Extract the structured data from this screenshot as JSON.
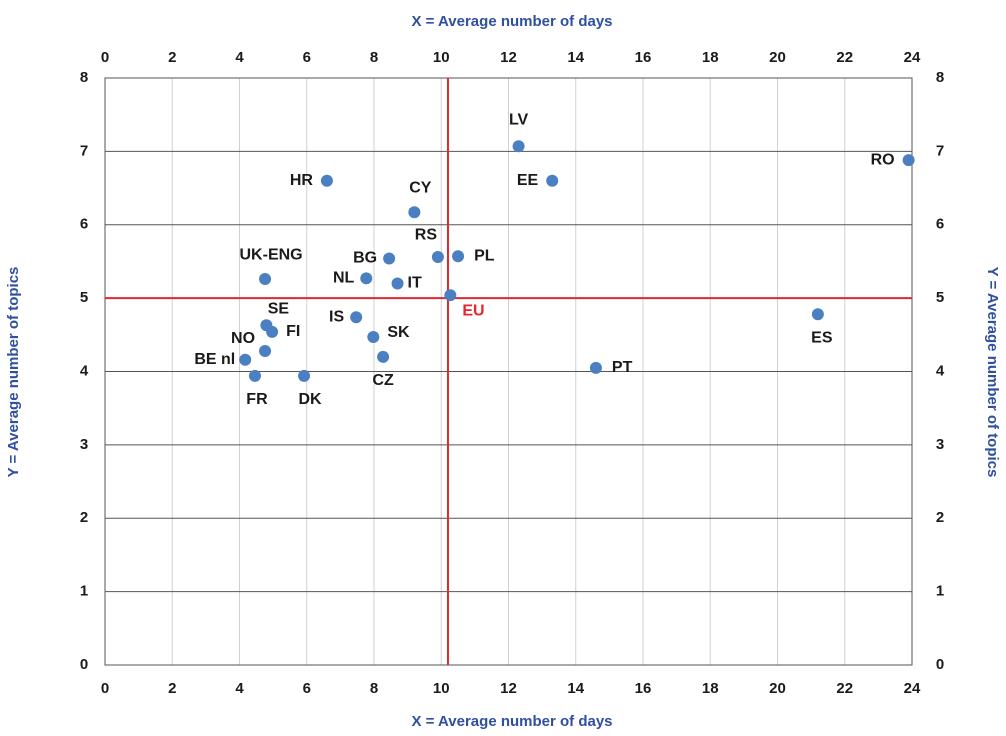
{
  "chart_data": {
    "type": "scatter",
    "x_label": "X = Average number of days",
    "y_label": "Y = Average number of topics",
    "labels": [
      "LV",
      "EE",
      "RO",
      "HR",
      "CY",
      "RS",
      "PL",
      "BG",
      "UK-ENG",
      "NL",
      "IT",
      "EU",
      "IS",
      "SK",
      "CZ",
      "SE",
      "FI",
      "NO",
      "BE nl",
      "FR",
      "DK",
      "PT",
      "ES"
    ],
    "x": [
      12.3,
      13.3,
      23.9,
      6.6,
      9.2,
      9.9,
      10.5,
      8.45,
      4.76,
      7.77,
      8.7,
      10.27,
      7.47,
      7.98,
      8.27,
      4.8,
      4.97,
      4.76,
      4.17,
      4.46,
      5.92,
      14.6,
      21.2
    ],
    "values": [
      7.07,
      6.6,
      6.88,
      6.6,
      6.17,
      5.56,
      5.57,
      5.54,
      5.26,
      5.27,
      5.2,
      5.04,
      4.74,
      4.47,
      4.2,
      4.63,
      4.54,
      4.28,
      4.16,
      3.94,
      3.94,
      4.05,
      4.78
    ],
    "color": "#4a7fc1",
    "highlight": {
      "index": 11,
      "color": "#e3262b"
    },
    "reference_lines": {
      "x": 10.2,
      "y": 5,
      "color": "#e3262b"
    },
    "xlim": [
      0,
      24
    ],
    "xticks": [
      0,
      2,
      4,
      6,
      8,
      10,
      12,
      14,
      16,
      18,
      20,
      22,
      24
    ],
    "ylim": [
      0,
      8
    ],
    "yticks": [
      0,
      1,
      2,
      3,
      4,
      5,
      6,
      7,
      8
    ],
    "grid": true
  }
}
